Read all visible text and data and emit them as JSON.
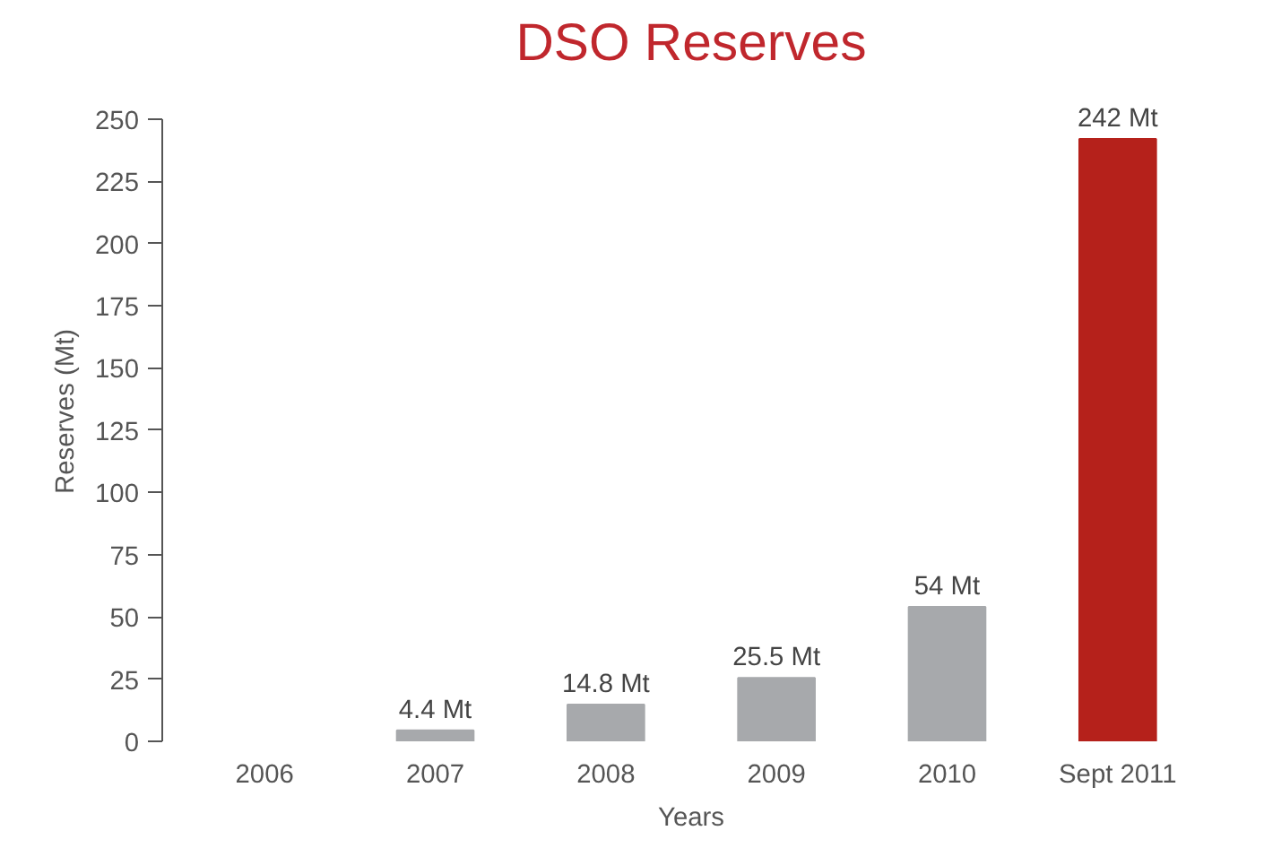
{
  "chart_data": {
    "type": "bar",
    "title": "DSO Reserves",
    "xlabel": "Years",
    "ylabel": "Reserves (Mt)",
    "categories": [
      "2006",
      "2007",
      "2008",
      "2009",
      "2010",
      "Sept 2011"
    ],
    "values": [
      null,
      4.4,
      14.8,
      25.5,
      54,
      242
    ],
    "colors": [
      "#a7a9ac",
      "#a7a9ac",
      "#a7a9ac",
      "#a7a9ac",
      "#a7a9ac",
      "#b5211b"
    ],
    "value_labels": [
      null,
      "4.4 Mt",
      "14.8 Mt",
      "25.5 Mt",
      "54 Mt",
      "242 Mt"
    ],
    "ylim": [
      0,
      250
    ],
    "yticks": [
      0,
      25,
      50,
      75,
      100,
      125,
      150,
      175,
      200,
      225,
      250
    ],
    "grid": false,
    "legend": false
  }
}
